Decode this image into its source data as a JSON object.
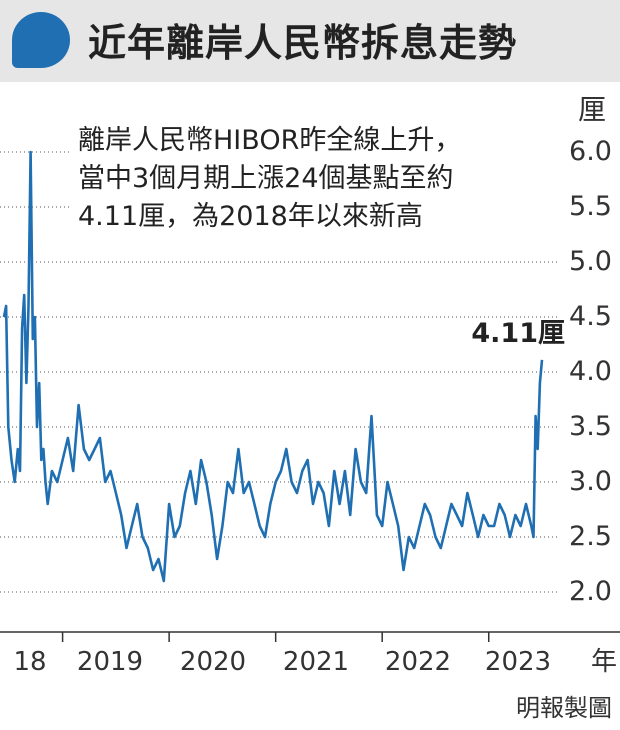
{
  "header": {
    "title": "近年離岸人民幣拆息走勢"
  },
  "annotation": {
    "lines": [
      "離岸人民幣HIBOR昨全線上升，",
      "當中3個月期上漲24個基點至約",
      "4.11厘，為2018年以來新高"
    ]
  },
  "source": "明報製圖",
  "colors": {
    "line": "#1f6fb2",
    "header_bg": "#e6e6e6",
    "bubble": "#1f6fb2"
  },
  "chart_data": {
    "type": "line",
    "title": "近年離岸人民幣拆息走勢",
    "ylabel": "厘",
    "xlabel": "年",
    "ylim": [
      1.8,
      6.3
    ],
    "yticks": [
      "6.0",
      "5.5",
      "5.0",
      "4.5",
      "4.0",
      "3.5",
      "3.0",
      "2.5",
      "2.0"
    ],
    "ytick_values": [
      6.0,
      5.5,
      5.0,
      4.5,
      4.0,
      3.5,
      3.0,
      2.5,
      2.0
    ],
    "xlim": [
      2018.45,
      2023.5
    ],
    "xtick_labels": [
      "18",
      "2019",
      "2020",
      "2021",
      "2022",
      "2023"
    ],
    "xtick_centers": [
      2018.25,
      2019.5,
      2020.5,
      2021.5,
      2022.5,
      2023.5
    ],
    "xtick_marks": [
      2019.0,
      2020.0,
      2021.0,
      2022.0,
      2023.0
    ],
    "grid": true,
    "end_label": "4.11厘",
    "series": [
      {
        "x": [
          2018.45,
          2018.47,
          2018.49,
          2018.52,
          2018.55,
          2018.58,
          2018.6,
          2018.62,
          2018.64,
          2018.66,
          2018.68,
          2018.7,
          2018.72,
          2018.74,
          2018.76,
          2018.78,
          2018.8,
          2018.82,
          2018.84,
          2018.86,
          2018.9,
          2018.95,
          2019.0,
          2019.05,
          2019.1,
          2019.15,
          2019.2,
          2019.25,
          2019.3,
          2019.35,
          2019.4,
          2019.45,
          2019.5,
          2019.55,
          2019.6,
          2019.65,
          2019.7,
          2019.75,
          2019.8,
          2019.85,
          2019.9,
          2019.95,
          2020.0,
          2020.05,
          2020.1,
          2020.15,
          2020.2,
          2020.25,
          2020.3,
          2020.35,
          2020.4,
          2020.45,
          2020.5,
          2020.55,
          2020.6,
          2020.65,
          2020.7,
          2020.75,
          2020.8,
          2020.85,
          2020.9,
          2020.95,
          2021.0,
          2021.05,
          2021.1,
          2021.15,
          2021.2,
          2021.25,
          2021.3,
          2021.35,
          2021.4,
          2021.45,
          2021.5,
          2021.55,
          2021.6,
          2021.65,
          2021.7,
          2021.75,
          2021.8,
          2021.85,
          2021.9,
          2021.95,
          2022.0,
          2022.05,
          2022.1,
          2022.15,
          2022.2,
          2022.25,
          2022.3,
          2022.35,
          2022.4,
          2022.45,
          2022.5,
          2022.55,
          2022.6,
          2022.65,
          2022.7,
          2022.75,
          2022.8,
          2022.85,
          2022.9,
          2022.95,
          2023.0,
          2023.05,
          2023.1,
          2023.15,
          2023.2,
          2023.25,
          2023.3,
          2023.35,
          2023.4,
          2023.42,
          2023.44,
          2023.46,
          2023.48,
          2023.5
        ],
        "y": [
          4.5,
          4.6,
          3.5,
          3.2,
          3.0,
          3.3,
          3.1,
          4.4,
          4.7,
          3.9,
          4.6,
          6.0,
          4.3,
          4.5,
          3.5,
          3.9,
          3.2,
          3.3,
          3.0,
          2.8,
          3.1,
          3.0,
          3.2,
          3.4,
          3.1,
          3.7,
          3.3,
          3.2,
          3.3,
          3.4,
          3.0,
          3.1,
          2.9,
          2.7,
          2.4,
          2.6,
          2.8,
          2.5,
          2.4,
          2.2,
          2.3,
          2.1,
          2.8,
          2.5,
          2.6,
          2.9,
          3.1,
          2.8,
          3.2,
          3.0,
          2.7,
          2.3,
          2.6,
          3.0,
          2.9,
          3.3,
          2.9,
          3.0,
          2.8,
          2.6,
          2.5,
          2.8,
          3.0,
          3.1,
          3.3,
          3.0,
          2.9,
          3.1,
          3.2,
          2.8,
          3.0,
          2.9,
          2.6,
          3.1,
          2.8,
          3.1,
          2.7,
          3.3,
          3.0,
          2.9,
          3.6,
          2.7,
          2.6,
          3.0,
          2.8,
          2.6,
          2.2,
          2.5,
          2.4,
          2.6,
          2.8,
          2.7,
          2.5,
          2.4,
          2.6,
          2.8,
          2.7,
          2.6,
          2.9,
          2.7,
          2.5,
          2.7,
          2.6,
          2.6,
          2.8,
          2.7,
          2.5,
          2.7,
          2.6,
          2.8,
          2.6,
          2.5,
          3.6,
          3.3,
          3.9,
          4.11
        ]
      }
    ]
  }
}
